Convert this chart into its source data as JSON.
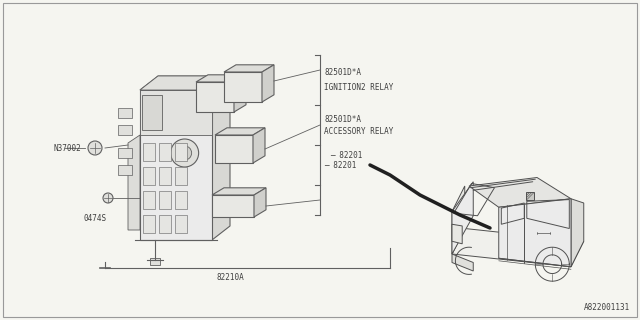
{
  "bg_color": "#f5f5f0",
  "line_color": "#606060",
  "text_color": "#404040",
  "fig_width": 6.4,
  "fig_height": 3.2,
  "dpi": 100,
  "labels": {
    "part1_num": "82501D*A",
    "part1_name": "IGNITION2 RELAY",
    "part2_num": "82501D*A",
    "part2_name": "ACCESSORY RELAY",
    "n37002": "N37002",
    "s0474": "0474S",
    "wire": "82210A",
    "harness": "82201",
    "doc_num": "A822001131"
  }
}
